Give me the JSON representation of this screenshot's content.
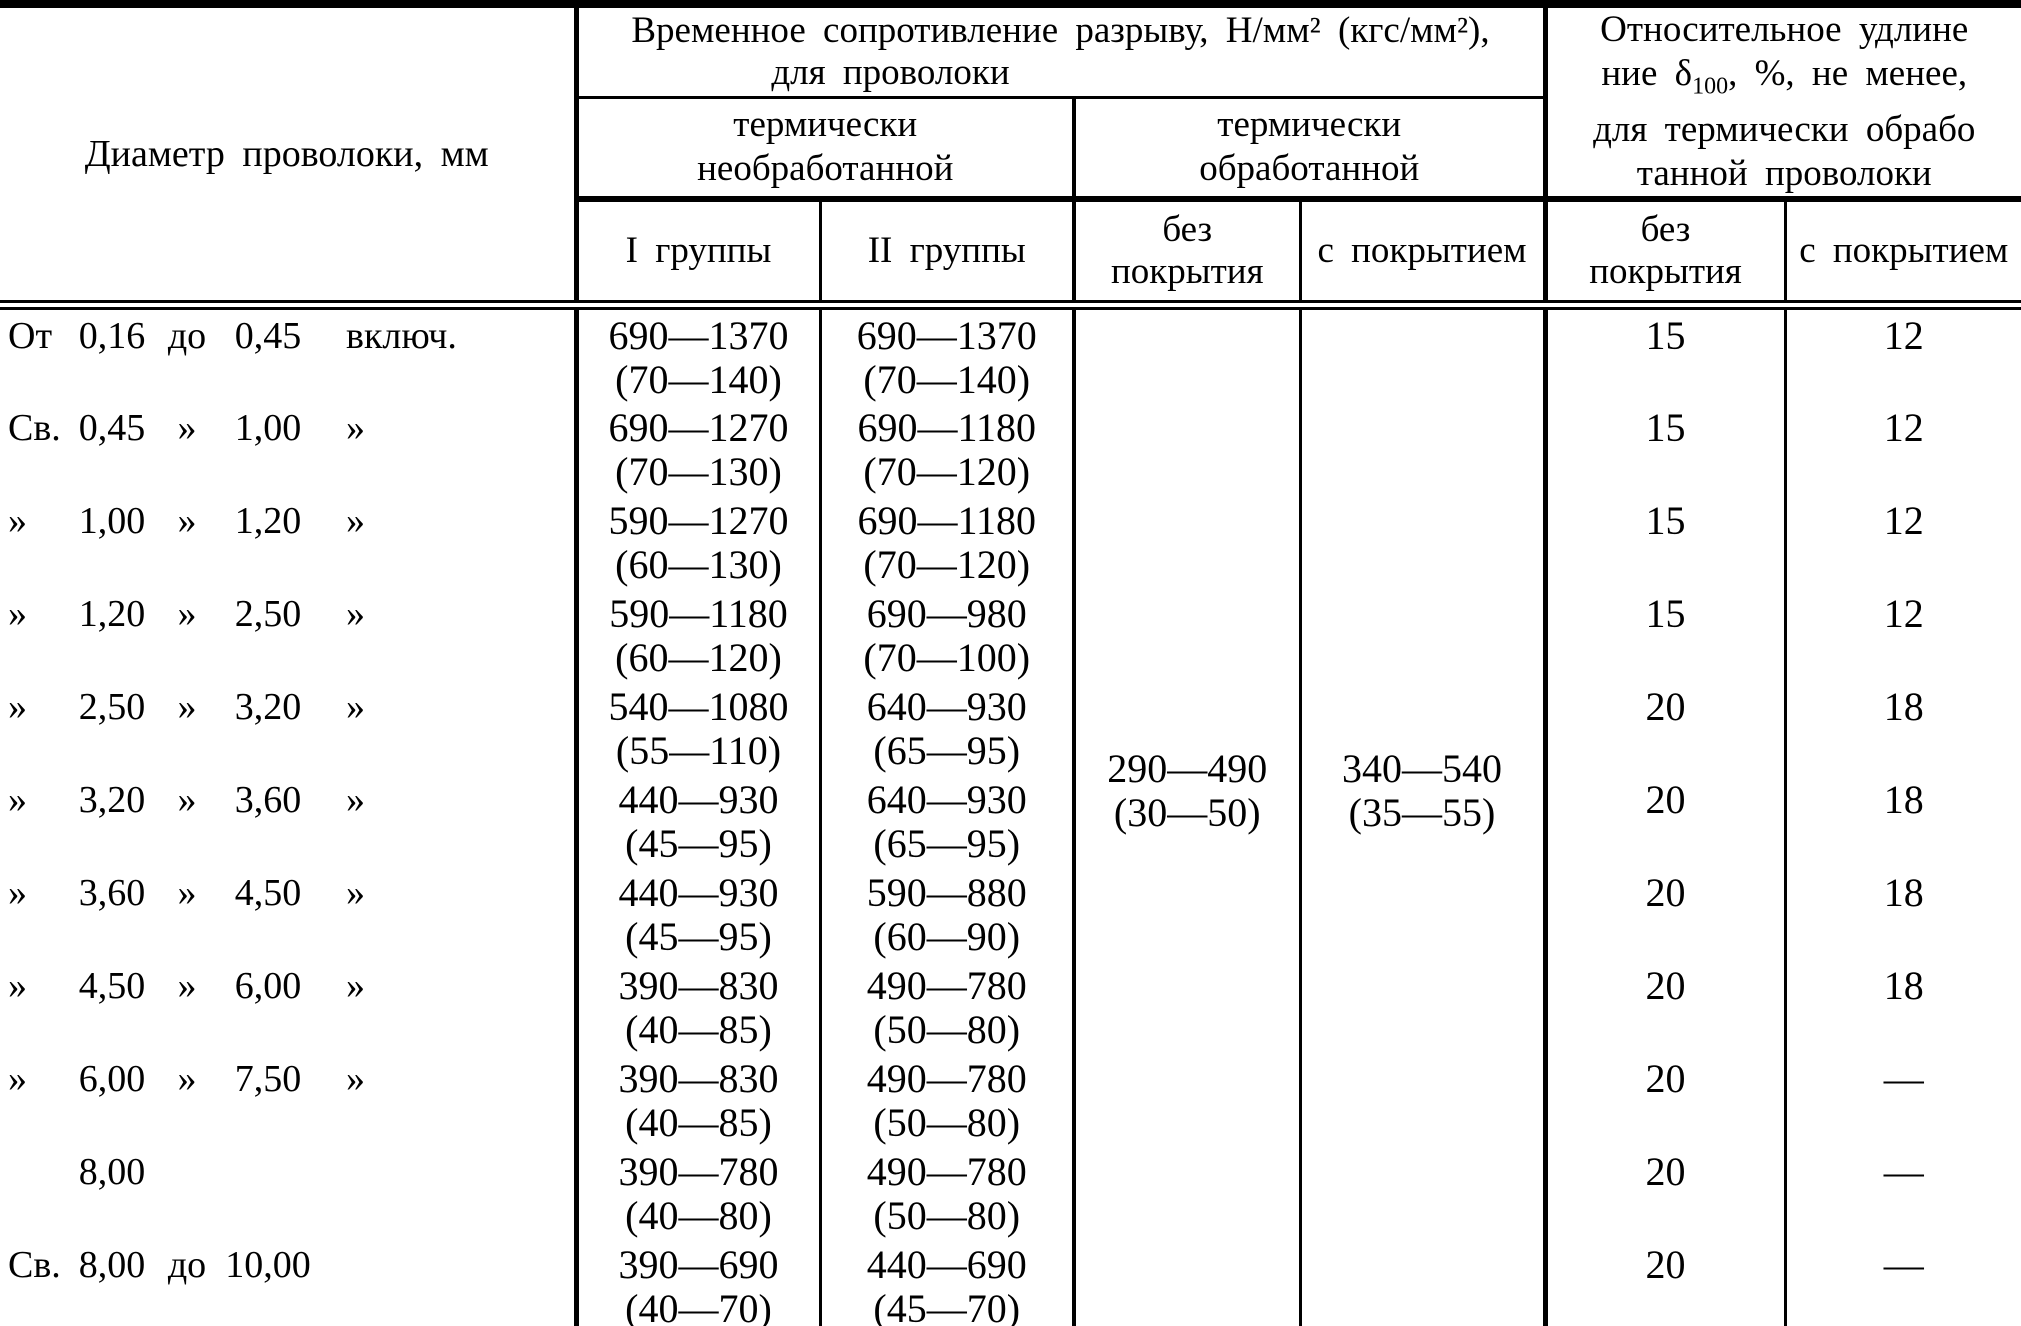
{
  "header": {
    "diameter": "Диаметр проволоки, мм",
    "tensile_line1": "Временное сопротивление разрыву, Н/мм² (кгс/мм²),",
    "tensile_line2": "для проволоки",
    "untreated_line1": "термически",
    "untreated_line2": "необработанной",
    "treated_line1": "термически",
    "treated_line2": "обработанной",
    "group_i": "I группы",
    "group_ii": "II группы",
    "no_coating_line1": "без",
    "no_coating_line2": "покрытия",
    "with_coating": "с покрытием",
    "elong_no_coating_line1": "без",
    "elong_no_coating_line2": "покрытия",
    "elong_with_coating": "с покрытием",
    "elong_l1": "Относительное удлине",
    "elong_l2_pre": "ние δ",
    "elong_l2_sub": "100",
    "elong_l2_post": ", %, не менее,",
    "elong_l3": "для термически обрабо",
    "elong_l4": "танной проволоки"
  },
  "merged": {
    "no_coat": "290—490",
    "no_coat_p": "(30—50)",
    "coated": "340—540",
    "coated_p": "(35—55)"
  },
  "rows": [
    {
      "label": [
        "От",
        "0,16",
        "до",
        "0,45",
        "включ."
      ],
      "g1": "690—1370",
      "g1p": "(70—140)",
      "g2": "690—1370",
      "g2p": "(70—140)",
      "e1": "15",
      "e2": "12"
    },
    {
      "label": [
        "Св.",
        "0,45",
        "»",
        "1,00",
        "»"
      ],
      "g1": "690—1270",
      "g1p": "(70—130)",
      "g2": "690—1180",
      "g2p": "(70—120)",
      "e1": "15",
      "e2": "12"
    },
    {
      "label": [
        "»",
        "1,00",
        "»",
        "1,20",
        "»"
      ],
      "g1": "590—1270",
      "g1p": "(60—130)",
      "g2": "690—1180",
      "g2p": "(70—120)",
      "e1": "15",
      "e2": "12"
    },
    {
      "label": [
        "»",
        "1,20",
        "»",
        "2,50",
        "»"
      ],
      "g1": "590—1180",
      "g1p": "(60—120)",
      "g2": "690—980",
      "g2p": "(70—100)",
      "e1": "15",
      "e2": "12"
    },
    {
      "label": [
        "»",
        "2,50",
        "»",
        "3,20",
        "»"
      ],
      "g1": "540—1080",
      "g1p": "(55—110)",
      "g2": "640—930",
      "g2p": "(65—95)",
      "e1": "20",
      "e2": "18"
    },
    {
      "label": [
        "»",
        "3,20",
        "»",
        "3,60",
        "»"
      ],
      "g1": "440—930",
      "g1p": "(45—95)",
      "g2": "640—930",
      "g2p": "(65—95)",
      "e1": "20",
      "e2": "18"
    },
    {
      "label": [
        "»",
        "3,60",
        "»",
        "4,50",
        "»"
      ],
      "g1": "440—930",
      "g1p": "(45—95)",
      "g2": "590—880",
      "g2p": "(60—90)",
      "e1": "20",
      "e2": "18"
    },
    {
      "label": [
        "»",
        "4,50",
        "»",
        "6,00",
        "»"
      ],
      "g1": "390—830",
      "g1p": "(40—85)",
      "g2": "490—780",
      "g2p": "(50—80)",
      "e1": "20",
      "e2": "18"
    },
    {
      "label": [
        "»",
        "6,00",
        "»",
        "7,50",
        "»"
      ],
      "g1": "390—830",
      "g1p": "(40—85)",
      "g2": "490—780",
      "g2p": "(50—80)",
      "e1": "20",
      "e2": "—"
    },
    {
      "label": [
        "",
        "8,00",
        "",
        "",
        ""
      ],
      "g1": "390—780",
      "g1p": "(40—80)",
      "g2": "490—780",
      "g2p": "(50—80)",
      "e1": "20",
      "e2": "—"
    },
    {
      "label": [
        "Св.",
        "8,00",
        "до",
        "10,00",
        ""
      ],
      "g1": "390—690",
      "g1p": "(40—70)",
      "g2": "440—690",
      "g2p": "(45—70)",
      "e1": "20",
      "e2": "—"
    }
  ]
}
